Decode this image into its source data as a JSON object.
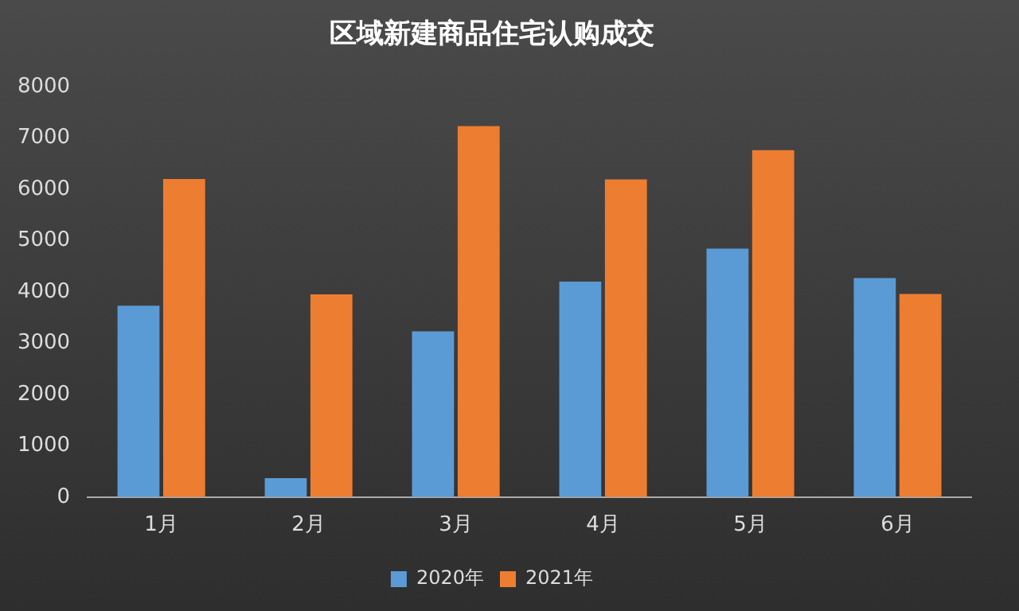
{
  "chart_data": {
    "type": "bar",
    "title": "区域新建商品住宅认购成交",
    "categories": [
      "1月",
      "2月",
      "3月",
      "4月",
      "5月",
      "6月"
    ],
    "series": [
      {
        "name": "2020年",
        "color": "#5b9bd5",
        "values": [
          3730,
          370,
          3230,
          4200,
          4840,
          4270
        ]
      },
      {
        "name": "2021年",
        "color": "#ed7d31",
        "values": [
          6200,
          3950,
          7230,
          6190,
          6760,
          3960
        ]
      }
    ],
    "ylim": [
      0,
      8000
    ],
    "yticks": [
      0,
      1000,
      2000,
      3000,
      4000,
      5000,
      6000,
      7000,
      8000
    ],
    "grid": false,
    "legend": "bottom"
  }
}
